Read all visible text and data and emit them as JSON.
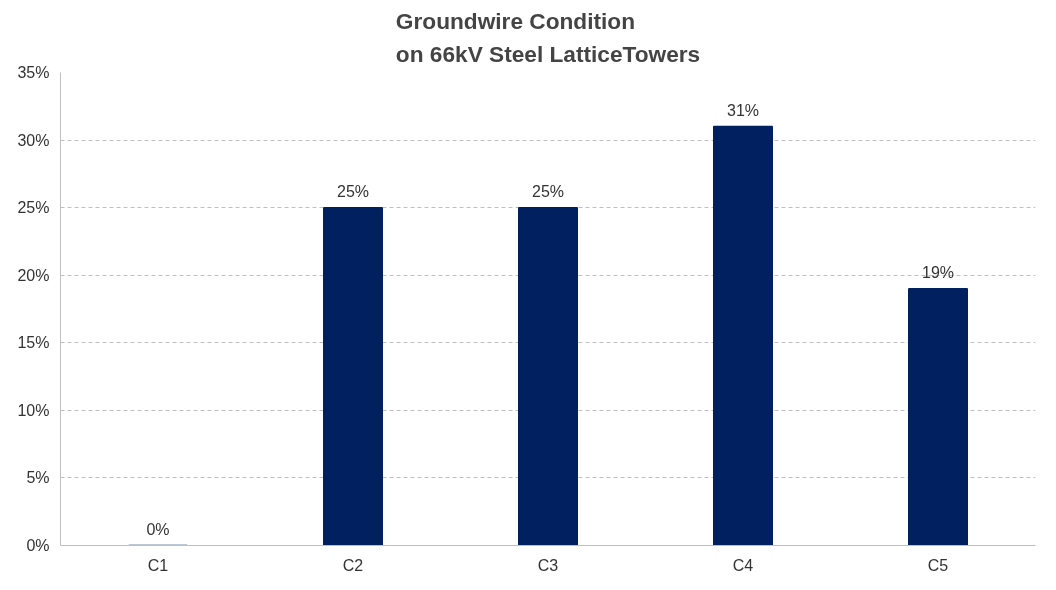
{
  "chart_data": {
    "type": "bar",
    "title": "Groundwire Condition\non 66kV Steel LatticeTowers",
    "categories": [
      "C1",
      "C2",
      "C3",
      "C4",
      "C5"
    ],
    "values": [
      0,
      25,
      25,
      31,
      19
    ],
    "value_labels": [
      "0%",
      "25%",
      "25%",
      "31%",
      "19%"
    ],
    "color": "#002060",
    "ylim": [
      0,
      35
    ],
    "yticks": [
      {
        "value": 0,
        "label": "0%"
      },
      {
        "value": 5,
        "label": "5%"
      },
      {
        "value": 10,
        "label": "10%"
      },
      {
        "value": 15,
        "label": "15%"
      },
      {
        "value": 20,
        "label": "20%"
      },
      {
        "value": 25,
        "label": "25%"
      },
      {
        "value": 30,
        "label": "30%"
      },
      {
        "value": 35,
        "label": "35%"
      }
    ],
    "grid": "y"
  }
}
